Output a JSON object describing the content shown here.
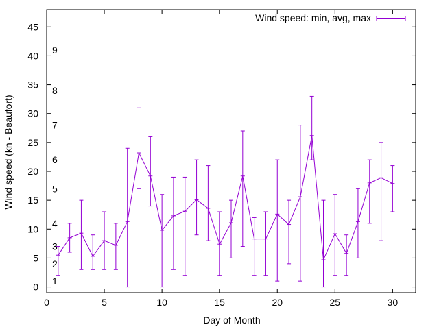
{
  "chart_data": {
    "type": "line",
    "xlabel": "Day of Month",
    "ylabel": "Wind speed (kn - Beaufort)",
    "xlim": [
      0,
      32
    ],
    "ylim": [
      -1,
      48
    ],
    "xticks": [
      0,
      5,
      10,
      15,
      20,
      25,
      30
    ],
    "yticks": [
      0,
      5,
      10,
      15,
      20,
      25,
      30,
      35,
      40,
      45
    ],
    "grid": false,
    "legend_position": "top-right",
    "beaufort_labels": [
      {
        "value": 1,
        "label": "1"
      },
      {
        "value": 4,
        "label": "2"
      },
      {
        "value": 7,
        "label": "3"
      },
      {
        "value": 11,
        "label": "4"
      },
      {
        "value": 17,
        "label": "5"
      },
      {
        "value": 22,
        "label": "6"
      },
      {
        "value": 28,
        "label": "7"
      },
      {
        "value": 34,
        "label": "8"
      },
      {
        "value": 41,
        "label": "9"
      }
    ],
    "series": [
      {
        "name": "Wind speed: min, avg, max",
        "color": "#9400d3",
        "x": [
          1,
          2,
          3,
          4,
          5,
          6,
          7,
          8,
          9,
          10,
          11,
          12,
          13,
          14,
          15,
          16,
          17,
          18,
          19,
          20,
          21,
          22,
          23,
          24,
          25,
          26,
          27,
          28,
          29,
          30
        ],
        "avg": [
          5.5,
          8.5,
          9.3,
          5.3,
          8,
          7.2,
          11.3,
          23.2,
          19.2,
          9.8,
          12.3,
          13.1,
          15.1,
          13.6,
          7.4,
          11.1,
          19.2,
          8.3,
          8.3,
          12.6,
          10.8,
          15.6,
          26.2,
          4.7,
          9.2,
          5.8,
          11.3,
          18,
          18.9,
          17.9
        ],
        "min": [
          2,
          6,
          3,
          3,
          3,
          3,
          0,
          17,
          14,
          0,
          3,
          2,
          9,
          8,
          2,
          5,
          7,
          2,
          2,
          1,
          4,
          1,
          22,
          0,
          2,
          2,
          5,
          11,
          8,
          13
        ],
        "max": [
          7,
          11,
          15,
          9,
          13,
          11,
          24,
          31,
          26,
          16,
          19,
          19,
          22,
          21,
          13,
          15,
          27,
          12,
          13,
          22,
          15,
          28,
          33,
          15,
          16,
          9,
          17,
          22,
          25,
          21
        ]
      }
    ]
  }
}
